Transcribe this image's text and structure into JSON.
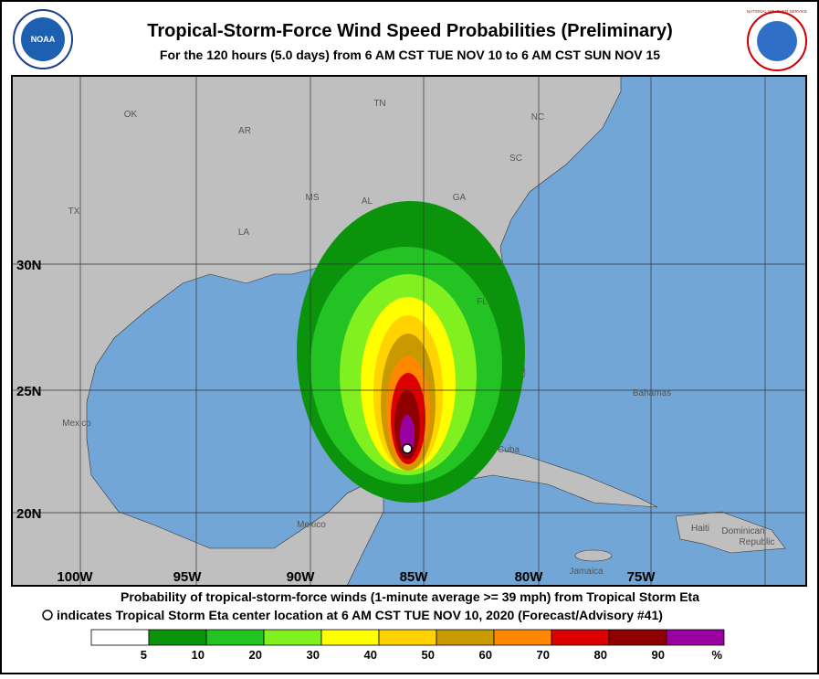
{
  "header": {
    "title": "Tropical-Storm-Force Wind Speed Probabilities (Preliminary)",
    "subtitle": "For the 120 hours (5.0 days) from 6 AM CST TUE NOV 10 to 6 AM CST SUN NOV 15",
    "left_logo": "NOAA",
    "right_logo": "NATIONAL WEATHER SERVICE"
  },
  "map": {
    "labels": [
      "OK",
      "AR",
      "TN",
      "NC",
      "SC",
      "MS",
      "AL",
      "GA",
      "TX",
      "LA",
      "FL",
      "Mexico",
      "Bahamas",
      "Cuba",
      "Mexico",
      "Haiti",
      "Dominican",
      "Republic",
      "Jamaica"
    ],
    "lat_labels": [
      "30N",
      "25N",
      "20N"
    ],
    "lon_labels": [
      "100W",
      "95W",
      "90W",
      "85W",
      "80W",
      "75W"
    ]
  },
  "footer": {
    "line1": "Probability of tropical-storm-force winds (1-minute average >= 39 mph) from Tropical Storm Eta",
    "line2": "indicates Tropical Storm Eta center location at 6 AM CST TUE NOV 10, 2020 (Forecast/Advisory #41)"
  },
  "legend": {
    "colors": [
      "#ffffff",
      "#0c930c",
      "#22c322",
      "#80f020",
      "#ffff00",
      "#ffd200",
      "#c89a00",
      "#ff8800",
      "#dd0000",
      "#8e0000",
      "#99009f"
    ],
    "labels": [
      "5",
      "10",
      "20",
      "30",
      "40",
      "50",
      "60",
      "70",
      "80",
      "90",
      "%"
    ]
  }
}
